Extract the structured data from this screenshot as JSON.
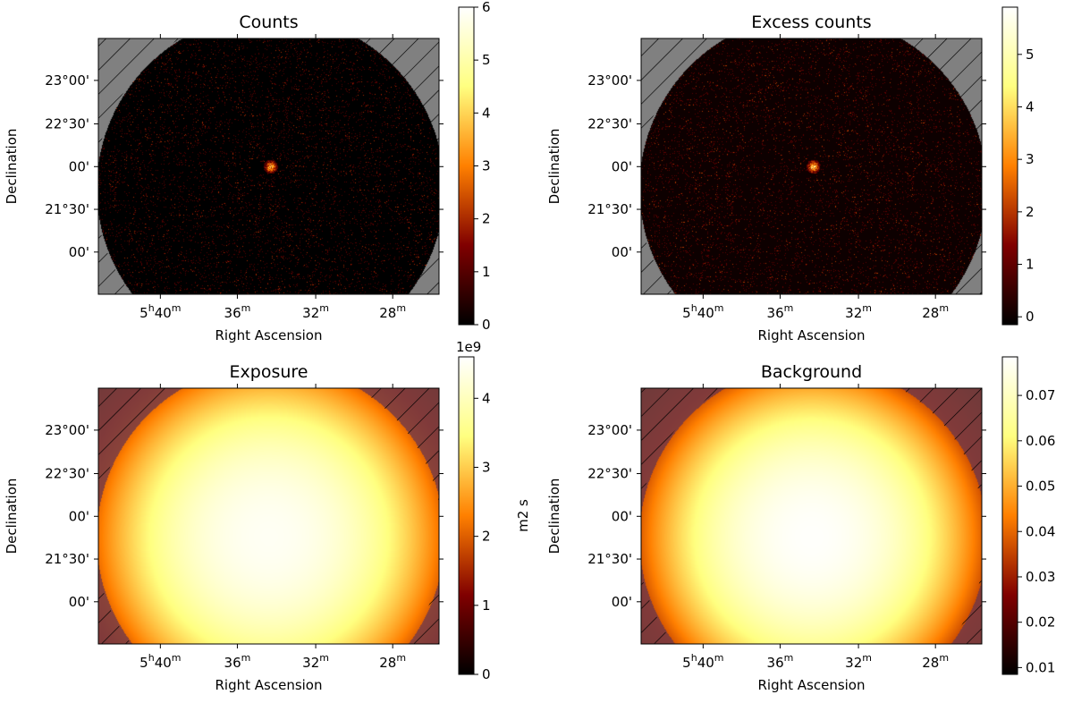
{
  "chart_data": [
    {
      "type": "heatmap",
      "title": "Counts",
      "xlabel": "Right Ascension",
      "ylabel": "Declination",
      "x_tick_labels": [
        {
          "main": "5",
          "sup1": "h",
          "mid": "40",
          "sup2": "m"
        },
        {
          "main": "36",
          "sup1": "",
          "mid": "",
          "sup2": "m"
        },
        {
          "main": "32",
          "sup1": "",
          "mid": "",
          "sup2": "m"
        },
        {
          "main": "28",
          "sup1": "",
          "mid": "",
          "sup2": "m"
        }
      ],
      "y_tick_labels": [
        "23°00'",
        "22°30'",
        "00'",
        "21°30'",
        "00'"
      ],
      "colorbar": {
        "ticks": [
          "0",
          "1",
          "2",
          "3",
          "4",
          "5",
          "6"
        ],
        "vmin": 0,
        "vmax": 6,
        "label": "",
        "offset_text": ""
      },
      "map": "counts",
      "source_peak": 6
    },
    {
      "type": "heatmap",
      "title": "Excess counts",
      "xlabel": "Right Ascension",
      "ylabel": "Declination",
      "x_tick_labels": [
        {
          "main": "5",
          "sup1": "h",
          "mid": "40",
          "sup2": "m"
        },
        {
          "main": "36",
          "sup1": "",
          "mid": "",
          "sup2": "m"
        },
        {
          "main": "32",
          "sup1": "",
          "mid": "",
          "sup2": "m"
        },
        {
          "main": "28",
          "sup1": "",
          "mid": "",
          "sup2": "m"
        }
      ],
      "y_tick_labels": [
        "23°00'",
        "22°30'",
        "00'",
        "21°30'",
        "00'"
      ],
      "colorbar": {
        "ticks": [
          "0",
          "1",
          "2",
          "3",
          "4",
          "5"
        ],
        "vmin": -0.15,
        "vmax": 5.9,
        "label": "",
        "offset_text": ""
      },
      "map": "counts",
      "source_peak": 5.9
    },
    {
      "type": "heatmap",
      "title": "Exposure",
      "xlabel": "Right Ascension",
      "ylabel": "Declination",
      "x_tick_labels": [
        {
          "main": "5",
          "sup1": "h",
          "mid": "40",
          "sup2": "m"
        },
        {
          "main": "36",
          "sup1": "",
          "mid": "",
          "sup2": "m"
        },
        {
          "main": "32",
          "sup1": "",
          "mid": "",
          "sup2": "m"
        },
        {
          "main": "28",
          "sup1": "",
          "mid": "",
          "sup2": "m"
        }
      ],
      "y_tick_labels": [
        "23°00'",
        "22°30'",
        "00'",
        "21°30'",
        "00'"
      ],
      "colorbar": {
        "ticks": [
          "0",
          "1",
          "2",
          "3",
          "4"
        ],
        "vmin": 0,
        "vmax": 4.6,
        "label": "m2 s",
        "offset_text": "1e9"
      },
      "map": "smooth",
      "center_value": 4.5,
      "edge_value": 2.0,
      "corner_value": 0.8
    },
    {
      "type": "heatmap",
      "title": "Background",
      "xlabel": "Right Ascension",
      "ylabel": "Declination",
      "x_tick_labels": [
        {
          "main": "5",
          "sup1": "h",
          "mid": "40",
          "sup2": "m"
        },
        {
          "main": "36",
          "sup1": "",
          "mid": "",
          "sup2": "m"
        },
        {
          "main": "32",
          "sup1": "",
          "mid": "",
          "sup2": "m"
        },
        {
          "main": "28",
          "sup1": "",
          "mid": "",
          "sup2": "m"
        }
      ],
      "y_tick_labels": [
        "23°00'",
        "22°30'",
        "00'",
        "21°30'",
        "00'"
      ],
      "colorbar": {
        "ticks": [
          "0.07",
          "0.06",
          "0.05",
          "0.04",
          "0.03",
          "0.02",
          "0.01"
        ],
        "vmin": 0.0085,
        "vmax": 0.0785,
        "label": "",
        "offset_text": ""
      },
      "map": "smooth",
      "center_value": 0.078,
      "edge_value": 0.036,
      "corner_value": 0.02
    }
  ]
}
